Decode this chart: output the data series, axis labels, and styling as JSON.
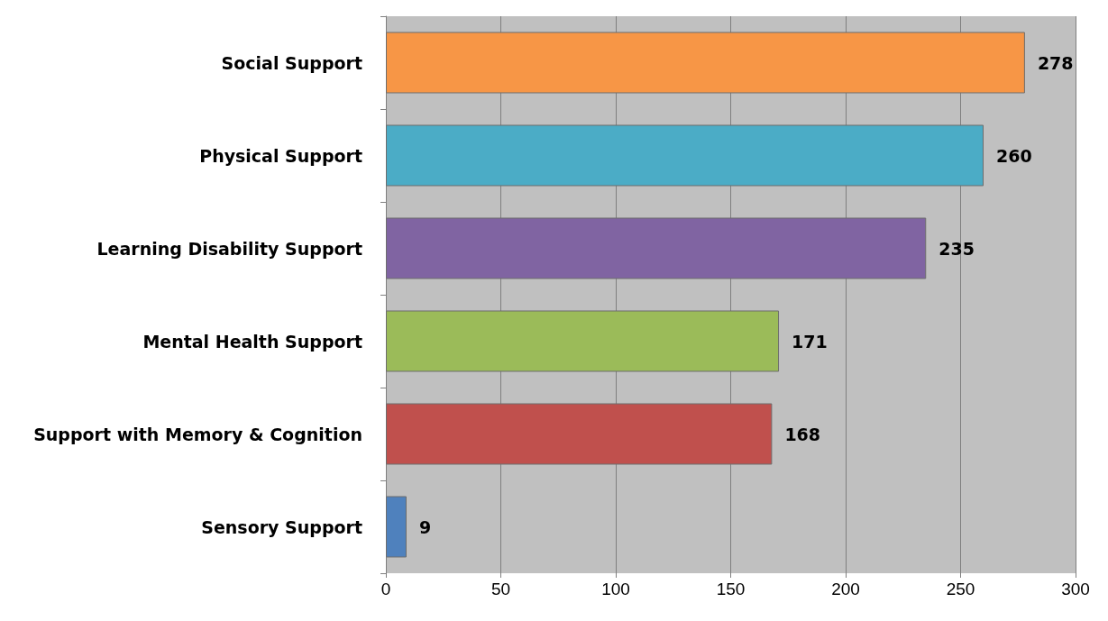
{
  "chart_data": {
    "type": "bar",
    "orientation": "horizontal",
    "categories": [
      "Social Support",
      "Physical Support",
      "Learning Disability Support",
      "Mental Health Support",
      "Support with Memory & Cognition",
      "Sensory Support"
    ],
    "values": [
      278,
      260,
      235,
      171,
      168,
      9
    ],
    "colors": [
      "#f79646",
      "#4bacc6",
      "#8064a2",
      "#9bbb59",
      "#c0504d",
      "#4f81bd"
    ],
    "xlim": [
      0,
      300
    ],
    "xticks": [
      0,
      50,
      100,
      150,
      200,
      250,
      300
    ],
    "grid": "x",
    "data_labels": true
  }
}
